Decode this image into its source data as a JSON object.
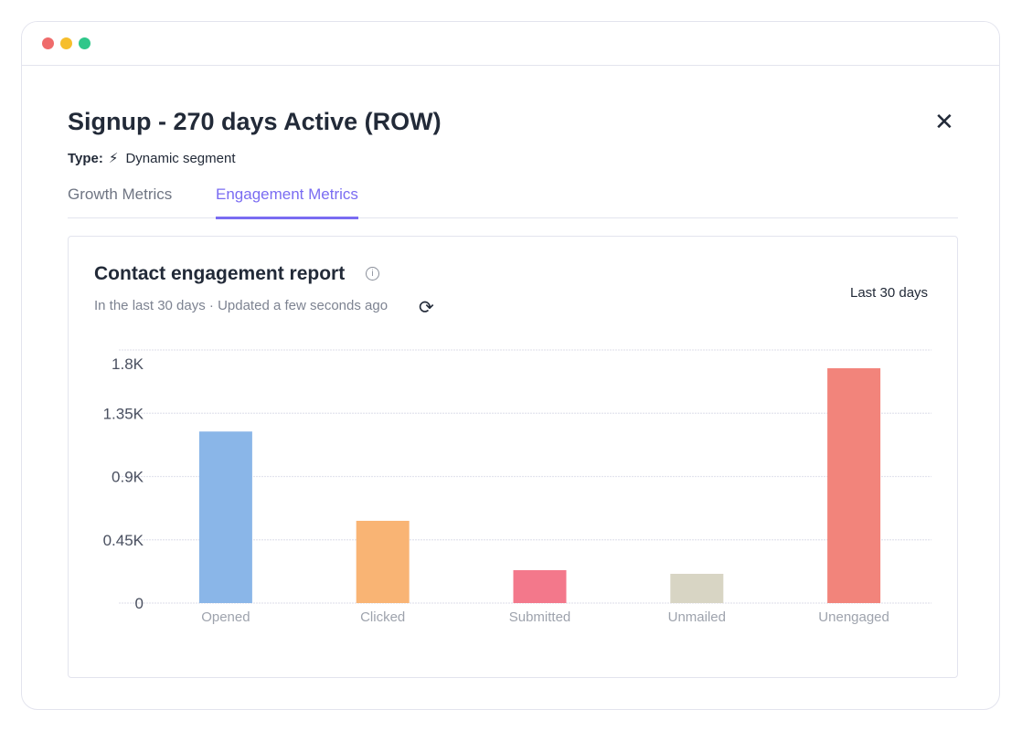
{
  "window": {
    "dots": [
      "#ef6b6b",
      "#f6be2c",
      "#2fc78a"
    ]
  },
  "header": {
    "title": "Signup - 270 days Active (ROW)",
    "type_label": "Type:",
    "type_icon": "lightning-icon",
    "type_value": "Dynamic segment"
  },
  "tabs": [
    {
      "label": "Growth Metrics",
      "active": false
    },
    {
      "label": "Engagement Metrics",
      "active": true
    }
  ],
  "card": {
    "title": "Contact engagement report",
    "subtitle": "In the last 30 days · Updated a few seconds ago",
    "range": "Last 30 days"
  },
  "chart_data": {
    "type": "bar",
    "categories": [
      "Opened",
      "Clicked",
      "Submitted",
      "Unmailed",
      "Unengaged"
    ],
    "values": [
      1220,
      585,
      234,
      208,
      1670
    ],
    "colors": [
      "#8ab6e8",
      "#f9b474",
      "#f3788b",
      "#d8d5c4",
      "#f2847b"
    ],
    "yticks": [
      0,
      450,
      900,
      1350,
      1800
    ],
    "ytick_labels": [
      "0",
      "0.45K",
      "0.9K",
      "1.35K",
      "1.8K"
    ],
    "ylim": [
      0,
      1800
    ],
    "grid": true
  }
}
